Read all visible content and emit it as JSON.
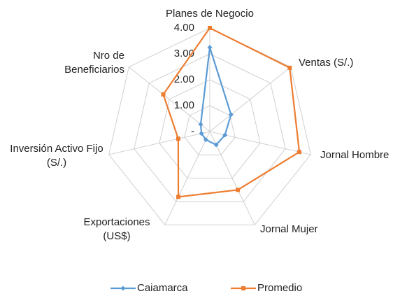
{
  "chart_data": {
    "type": "radar",
    "categories": [
      "Planes de Negocio",
      "Ventas (S/.)",
      "Jornal Hombre",
      "Jornal Mujer",
      "Exportaciones (US$)",
      "Inversión Activo Fijo (S/.)",
      "Nro de Beneficiarios"
    ],
    "series": [
      {
        "name": "Caiamarca",
        "color": "#5b9bd5",
        "values": [
          3.25,
          1.05,
          0.6,
          0.57,
          0.35,
          0.33,
          0.45
        ]
      },
      {
        "name": "Promedio",
        "color": "#ed7d31",
        "values": [
          4.0,
          3.95,
          3.55,
          2.5,
          2.8,
          1.25,
          2.3
        ]
      }
    ],
    "ylim": [
      0,
      4
    ],
    "yticks": [
      {
        "value": 0,
        "label": "-"
      },
      {
        "value": 1,
        "label": "1.00"
      },
      {
        "value": 2,
        "label": "2.00"
      },
      {
        "value": 3,
        "label": "3.00"
      },
      {
        "value": 4,
        "label": "4.00"
      }
    ],
    "grid": true,
    "legend": "bottom"
  }
}
